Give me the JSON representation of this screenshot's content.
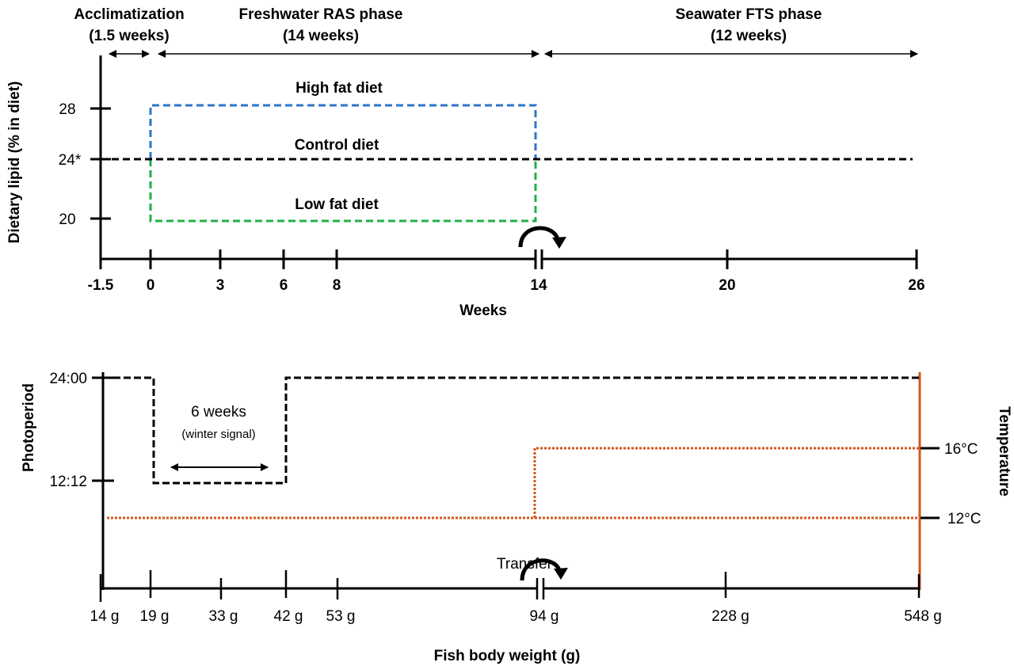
{
  "top_panel": {
    "phases": [
      {
        "title": "Acclimatization",
        "duration": "(1.5 weeks)"
      },
      {
        "title": "Freshwater RAS phase",
        "duration": "(14 weeks)"
      },
      {
        "title": "Seawater FTS phase",
        "duration": "(12 weeks)"
      }
    ],
    "y_axis_label": "Dietary lipid (% in diet)",
    "y_ticks": [
      "28",
      "24*",
      "20"
    ],
    "x_axis_label": "Weeks",
    "x_ticks": [
      "-1.5",
      "0",
      "3",
      "6",
      "8",
      "14",
      "20",
      "26"
    ],
    "diets": [
      {
        "label": "High fat diet",
        "lipid": 28,
        "color": "#2e75c9"
      },
      {
        "label": "Control diet",
        "lipid": 24,
        "color": "#000000"
      },
      {
        "label": "Low fat diet",
        "lipid": 20,
        "color": "#1fb04a"
      }
    ]
  },
  "bottom_panel": {
    "y_left_label": "Photoperiod",
    "y_left_ticks": [
      "24:00",
      "12:12"
    ],
    "y_right_label": "Temperature",
    "y_right_ticks": [
      "16°C",
      "12°C"
    ],
    "winter_signal": {
      "duration": "6 weeks",
      "note": "(winter signal)"
    },
    "transfer_label": "Transfer",
    "x_axis_label": "Fish body weight (g)",
    "x_ticks": [
      "14 g",
      "19 g",
      "33 g",
      "42 g",
      "53 g",
      "94 g",
      "228 g",
      "548 g"
    ],
    "temperature_color": "#d4561a"
  }
}
